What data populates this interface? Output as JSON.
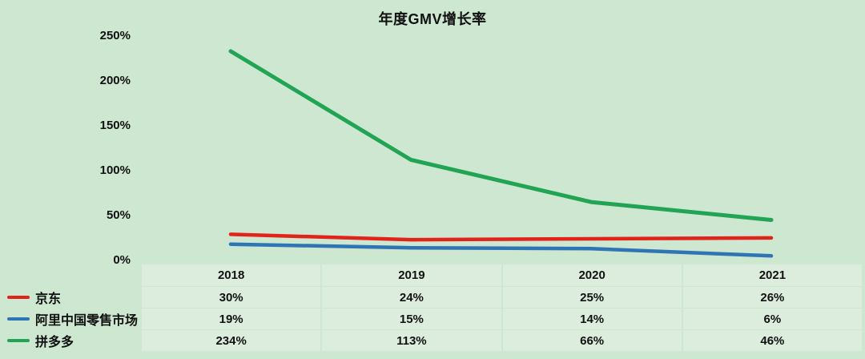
{
  "chart_data": {
    "type": "line",
    "title": "年度GMV增长率",
    "categories": [
      "2018",
      "2019",
      "2020",
      "2021"
    ],
    "ytick_labels": [
      "250%",
      "200%",
      "150%",
      "100%",
      "50%",
      "0%"
    ],
    "ylim": [
      0,
      250
    ],
    "grid": false,
    "legend_position": "bottom-left-table",
    "series": [
      {
        "key": "jd",
        "name": "京东",
        "color": "#e2231a",
        "values": [
          30,
          24,
          25,
          26
        ],
        "labels": [
          "30%",
          "24%",
          "25%",
          "26%"
        ]
      },
      {
        "key": "ali",
        "name": "阿里中国零售市场",
        "color": "#2e75b6",
        "values": [
          19,
          15,
          14,
          6
        ],
        "labels": [
          "19%",
          "15%",
          "14%",
          "6%"
        ]
      },
      {
        "key": "pdd",
        "name": "拼多多",
        "color": "#21a453",
        "values": [
          234,
          113,
          66,
          46
        ],
        "labels": [
          "234%",
          "113%",
          "66%",
          "46%"
        ]
      }
    ]
  },
  "colors": {
    "background": "#cde7d1",
    "cell_background": "#dcedde",
    "text": "#111111"
  }
}
